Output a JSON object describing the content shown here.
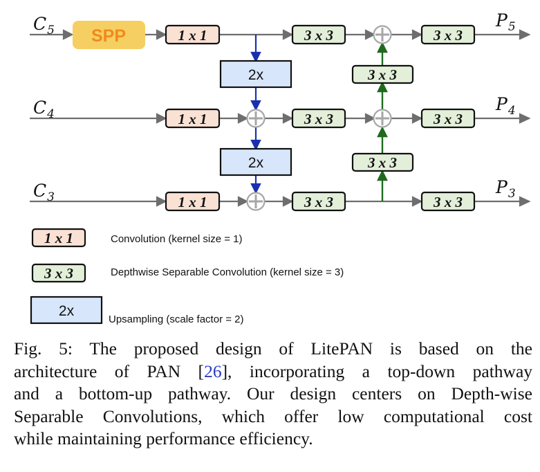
{
  "inputs": {
    "c5": "C",
    "c5_sub": "5",
    "c4": "C",
    "c4_sub": "4",
    "c3": "C",
    "c3_sub": "3"
  },
  "outputs": {
    "p5": "P",
    "p5_sub": "5",
    "p4": "P",
    "p4_sub": "4",
    "p3": "P",
    "p3_sub": "3"
  },
  "blocks": {
    "spp": "SPP",
    "conv1": "1 x 1",
    "conv3": "3 x 3",
    "upsample": "2x"
  },
  "legend": {
    "conv1_desc": "Convolution (kernel size = 1)",
    "conv3_desc": "Depthwise Separable Convolution (kernel size = 3)",
    "upsample_desc": "Upsampling (scale factor = 2)"
  },
  "caption": {
    "line1": "Fig. 5: The proposed design of LitePAN is based on the",
    "line2a": "architecture of PAN [",
    "ref": "26",
    "line2b": "], incorporating a top-down pathway",
    "line3": "and a bottom-up pathway. Our design centers on Depth-wise",
    "line4": "Separable Convolutions, which offer low computational cost",
    "line5": "while maintaining performance efficiency."
  },
  "colors": {
    "conv1_fill": "#f9e1d4",
    "conv3_fill": "#e3efd9",
    "upsample_fill": "#d7e6fa",
    "spp_fill": "#f6cf62",
    "spp_text": "#f08a1c",
    "topdown_arrow": "#1a2fb0",
    "bottomup_arrow": "#1e6a1e",
    "line": "#6e6e6e"
  }
}
